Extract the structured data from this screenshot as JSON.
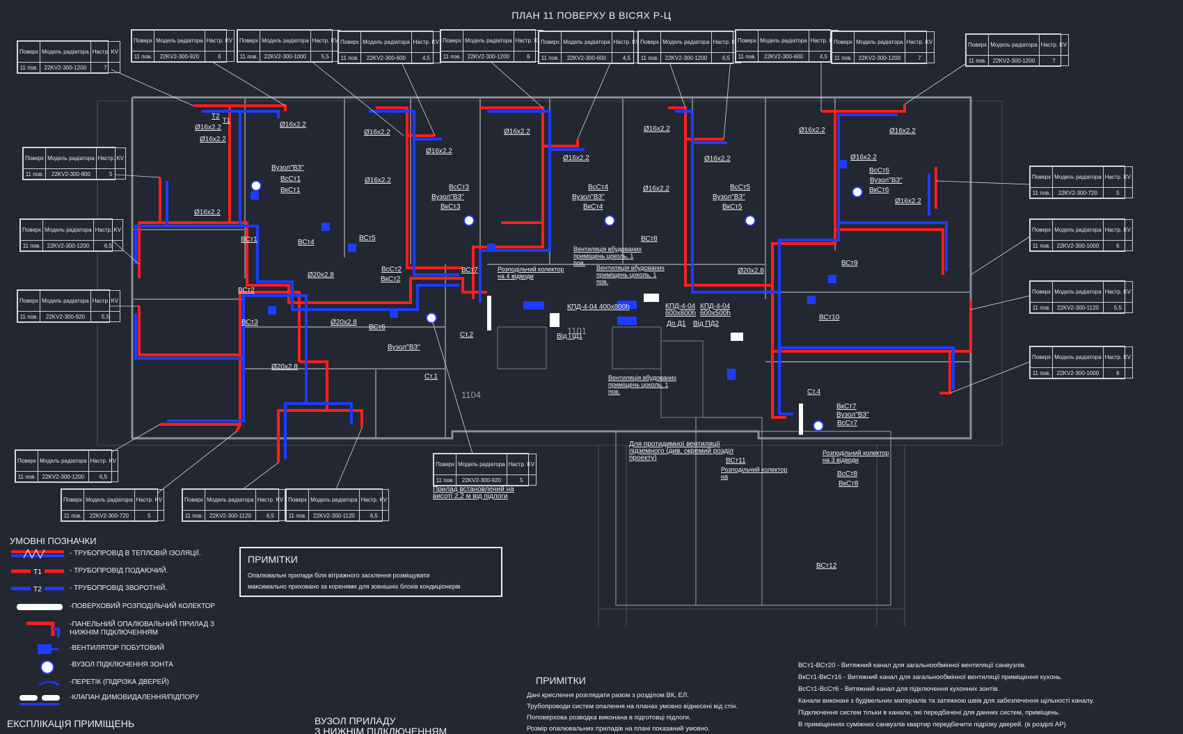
{
  "title": "ПЛАН 11 ПОВЕРХУ В ВІСЯХ Р-Ц",
  "colors": {
    "background": "#222732",
    "supply": "#ff1e1e",
    "return": "#1e3cff",
    "walls": "#8c8f96",
    "text": "#f0f0f0"
  },
  "table_header": {
    "floor": "Поверх",
    "model": "Модель радіатора",
    "kv": "Настр. KV"
  },
  "radiator_tables": [
    {
      "floor": "11 пов.",
      "model": "22KV2-300-1200",
      "kv": "7"
    },
    {
      "floor": "11 пов.",
      "model": "22KV2-300-920",
      "kv": "6"
    },
    {
      "floor": "11 пов.",
      "model": "22KV2-300-1000",
      "kv": "5,5"
    },
    {
      "floor": "11 пов.",
      "model": "22KV2-300-600",
      "kv": "4,5"
    },
    {
      "floor": "11 пов.",
      "model": "22KV2-300-1200",
      "kv": "6"
    },
    {
      "floor": "11 пов.",
      "model": "22KV2-300-600",
      "kv": "4,5"
    },
    {
      "floor": "11 пов.",
      "model": "22KV2-300-1200",
      "kv": "6,5"
    },
    {
      "floor": "11 пов.",
      "model": "22KV2-300-600",
      "kv": "4,5"
    },
    {
      "floor": "11 пов.",
      "model": "22KV2-300-1200",
      "kv": "7"
    },
    {
      "floor": "11 пов.",
      "model": "22KV2-300-1200",
      "kv": "7"
    },
    {
      "floor": "11 пов.",
      "model": "22KV2-300-800",
      "kv": "5"
    },
    {
      "floor": "11 пов.",
      "model": "22KV2-300-1200",
      "kv": "6,5"
    },
    {
      "floor": "11 пов.",
      "model": "22KV2-300-920",
      "kv": "5,5"
    },
    {
      "floor": "11 пов.",
      "model": "22KV2-300-720",
      "kv": "5"
    },
    {
      "floor": "11 пов.",
      "model": "22KV2-300-1000",
      "kv": "6"
    },
    {
      "floor": "11 пов.",
      "model": "22KV2-300-1120",
      "kv": "5,5"
    },
    {
      "floor": "11 пов.",
      "model": "22KV2-300-1000",
      "kv": "6"
    },
    {
      "floor": "11 пов.",
      "model": "22KV2-300-1200",
      "kv": "6,5"
    },
    {
      "floor": "11 пов.",
      "model": "22KV2-300-720",
      "kv": "5"
    },
    {
      "floor": "11 пов.",
      "model": "22KV2-300-1120",
      "kv": "6,5"
    },
    {
      "floor": "11 пов.",
      "model": "22KV2-300-1120",
      "kv": "6,5"
    },
    {
      "floor": "11 пов.",
      "model": "22KV2-300-920",
      "kv": "5"
    }
  ],
  "plan_labels": [
    "Ø16x2.2",
    "Ø16x2.2",
    "Ø16x2.2",
    "Ø16x2.2",
    "Ø16x2.2",
    "Ø16x2.2",
    "Ø16x2.2",
    "Ø16x2.2",
    "Ø16x2.2",
    "Ø16x2.2",
    "Ø16x2.2",
    "Ø16x2.2",
    "Ø16x2.2",
    "Ø16x2.2",
    "Ø16x2.2",
    "Ø16x2.2",
    "Ø20x2.8",
    "Ø20x2.8",
    "Ø20x2.8",
    "Ø20x2.8",
    "Вузол\"ВЗ\"",
    "ВсСт1",
    "ВкСт1",
    "ВсСт3",
    "Вузол\"ВЗ\"",
    "ВкСт3",
    "ВсСт4",
    "Вузол\"ВЗ\"",
    "ВкСт4",
    "ВсСт5",
    "Вузол\"ВЗ\"",
    "ВкСт5",
    "ВсСт6",
    "Вузол\"ВЗ\"",
    "ВкСт6",
    "ВСт1",
    "ВСт4",
    "ВСт5",
    "ВСт2",
    "ВСт3",
    "ВСт6",
    "ВСт7",
    "ВСт8",
    "ВСт9",
    "ВСт10",
    "ВСт11",
    "ВСт12",
    "ВсСт2",
    "ВкСт2",
    "Вузол\"ВЗ\"",
    "Ст.2",
    "Ст.1",
    "Ст.4",
    "ВкСт7",
    "Вузол\"ВЗ\"",
    "ВсСт7",
    "ВсСт8",
    "ВкСт8",
    "Вентиляція вбудованих приміщень цоколь, 1 пов.",
    "Вентиляція вбудованих приміщень цоколь, 1 пов.",
    "Вентиляція вбудованих приміщень цоколь, 1 пов.",
    "Розподільчий колектор на 4 відводи",
    "Розподільчий колектор на 3 відводи",
    "Розподільчий колектор на",
    "КПД-4-04 400x800h",
    "Від ПД1",
    "КПД-4-04 600x800h",
    "До Д1",
    "КПД-4-04 600x500h",
    "Від ПД2",
    "Для протидимної вентиляції підземного (див. окремий розділ проекту)",
    "Прилад встановлений на висоті 2,2 м від підлоги",
    "T1",
    "T2"
  ],
  "legend": {
    "title": "УМОВНІ ПОЗНАЧКИ",
    "items": [
      "- ТРУБОПРОВІД В ТЕПЛОВІЙ ІЗОЛЯЦІЇ.",
      "- ТРУБОПРОВІД ПОДАЮЧИЙ.",
      "- ТРУБОПРОВІД ЗВОРОТНІЙ.",
      "-ПОВЕРХОВИЙ РОЗПОДІЛЬЧИЙ КОЛЕКТОР",
      "-ПАНЕЛЬНИЙ ОПАЛЮВАЛЬНИЙ ПРИЛАД З НИЖНІМ ПІДКЛЮЧЕННЯМ",
      "-ВЕНТИЛЯТОР ПОБУТОВИЙ",
      "-ВУЗОЛ ПІДКЛЮЧЕННЯ ЗОНТА",
      "-ПЕРЕТІК (ПІДРІЗКА ДВЕРЕЙ)",
      "-КЛАПАН ДИМОВИДАЛЕННЯ/ПІДПОРУ"
    ],
    "t1": "T1",
    "t2": "T2"
  },
  "notes_box": {
    "title": "ПРИМІТКИ",
    "line1": "Опалювальні прилади біля вітражного засклення розміщувати",
    "line2": "максимально приховано за коренями для зовнішніх блоків кондиціонерів"
  },
  "notes_bottom": {
    "title": "ПРИМІТКИ",
    "lines": [
      "Дані креслення розглядати разом з розділом ВК, ЕЛ.",
      "Трубопроводи систем опалення на планах умовно віднесені від стін.",
      "Поповерхова розводка виконана в підготовці підлоги.",
      "Розмір опалювальних приладів на плані показаний умовно."
    ]
  },
  "channel_notes": [
    "ВСт1-ВСт20 - Витяжний канал для загальнообмінної вентиляції санвузлів.",
    "ВкСт1-ВкСт16 - Витяжний канал для загальнообмінної вентиляції приміщення кухонь.",
    "ВсСт1-ВсСт6 - Витяжний канал для підключення кухонних зонтів.",
    "Канали виконані з будівельних матеріалів та затяжкою швів для забезпечення щільності каналу.",
    "Підключення систем тільки в канали, які передбачені для данних систем, приміщень.",
    "В приміщеннях суміжних санвузлів квартир передбачити підрізку дверей. (в розділі АР)"
  ],
  "explication_title": "ЕКСПЛІКАЦІЯ ПРИМІЩЕНЬ",
  "node_title_1": "ВУЗОЛ ПРИЛАДУ",
  "node_title_2": "З НИЖНІМ ПІДКЛЮЧЕННЯМ",
  "room_numbers": [
    "1101",
    "1104"
  ]
}
